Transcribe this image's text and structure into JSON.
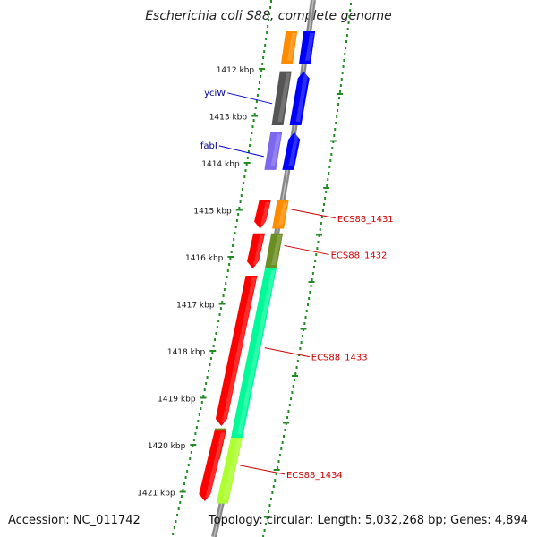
{
  "title": "Escherichia coli S88, complete genome",
  "accession_text": "Accession: NC_011742",
  "summary_text": "Topology: circular; Length: 5,032,268 bp; Genes: 4,894",
  "ticks": [
    {
      "kbp": 1412,
      "label": "1412 kbp"
    },
    {
      "kbp": 1413,
      "label": "1413 kbp"
    },
    {
      "kbp": 1414,
      "label": "1414 kbp"
    },
    {
      "kbp": 1415,
      "label": "1415 kbp"
    },
    {
      "kbp": 1416,
      "label": "1416 kbp"
    },
    {
      "kbp": 1417,
      "label": "1417 kbp"
    },
    {
      "kbp": 1418,
      "label": "1418 kbp"
    },
    {
      "kbp": 1419,
      "label": "1419 kbp"
    },
    {
      "kbp": 1420,
      "label": "1420 kbp"
    },
    {
      "kbp": 1421,
      "label": "1421 kbp"
    }
  ],
  "genes": [
    {
      "label": "",
      "strand": "outer",
      "start": 1411.2,
      "end": 1411.9,
      "color": "#ff8c00",
      "arrow": false
    },
    {
      "label": "",
      "strand": "inner",
      "start": 1411.2,
      "end": 1411.9,
      "color": "#0000ff",
      "arrow": false
    },
    {
      "label": "yciW",
      "strand": "outer",
      "start": 1412.05,
      "end": 1413.2,
      "color": "#555555",
      "arrow": false,
      "label_color": "#00008b"
    },
    {
      "label": "",
      "strand": "inner",
      "start": 1412.05,
      "end": 1413.2,
      "color": "#0000ff",
      "arrow": true
    },
    {
      "label": "fabI",
      "strand": "outer",
      "start": 1413.35,
      "end": 1414.15,
      "color": "#7b68ee",
      "arrow": false,
      "label_color": "#00008b"
    },
    {
      "label": "",
      "strand": "inner",
      "start": 1413.35,
      "end": 1414.15,
      "color": "#0000ff",
      "arrow": true
    },
    {
      "label": "ECS88_1431",
      "strand": "inner",
      "start": 1414.8,
      "end": 1415.4,
      "color": "#ff8c00",
      "arrow": false,
      "label_color": "#cc0000"
    },
    {
      "label": "",
      "strand": "outer",
      "start": 1414.8,
      "end": 1415.4,
      "color": "#ff0000",
      "arrow": true,
      "arrow_dir": "down"
    },
    {
      "label": "ECS88_1432",
      "strand": "inner",
      "start": 1415.5,
      "end": 1416.25,
      "color": "#6b8e23",
      "arrow": false,
      "label_color": "#cc0000"
    },
    {
      "label": "",
      "strand": "outer",
      "start": 1415.5,
      "end": 1416.25,
      "color": "#ff0000",
      "arrow": true,
      "arrow_dir": "down"
    },
    {
      "label": "ECS88_1433",
      "strand": "inner",
      "start": 1416.25,
      "end": 1419.85,
      "color": "#00fa9a",
      "arrow": false,
      "label_color": "#cc0000"
    },
    {
      "label": "",
      "strand": "outer",
      "start": 1416.4,
      "end": 1419.6,
      "color": "#ff0000",
      "arrow": true,
      "arrow_dir": "down"
    },
    {
      "label": "ECS88_1434",
      "strand": "inner",
      "start": 1419.85,
      "end": 1421.25,
      "color": "#adff2f",
      "arrow": false,
      "label_color": "#cc0000"
    },
    {
      "label": "",
      "strand": "outer",
      "start": 1419.65,
      "end": 1420.3,
      "color": "#6b8e23",
      "arrow": false
    },
    {
      "label": "",
      "strand": "outer",
      "start": 1419.7,
      "end": 1421.2,
      "color": "#ff0000",
      "arrow": true,
      "arrow_dir": "down"
    }
  ]
}
